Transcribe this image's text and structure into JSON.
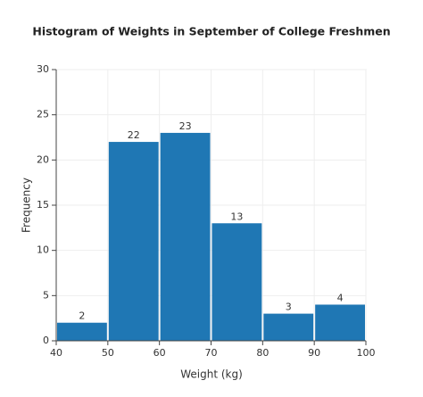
{
  "chart_data": {
    "type": "histogram",
    "title": "Histogram of Weights in September of College Freshmen",
    "x_label": "Weight (kg)",
    "y_label": "Frequency",
    "bins": [
      40,
      50,
      60,
      70,
      80,
      90,
      100
    ],
    "values": [
      2,
      22,
      23,
      13,
      3,
      4
    ],
    "color": "#1f77b4",
    "xlim": [
      40,
      100
    ],
    "xticks": [
      40,
      50,
      60,
      70,
      80,
      90,
      100
    ],
    "ylim": [
      0,
      30
    ],
    "yticks": [
      0,
      5,
      10,
      15,
      20,
      25,
      30
    ],
    "grid": true
  }
}
